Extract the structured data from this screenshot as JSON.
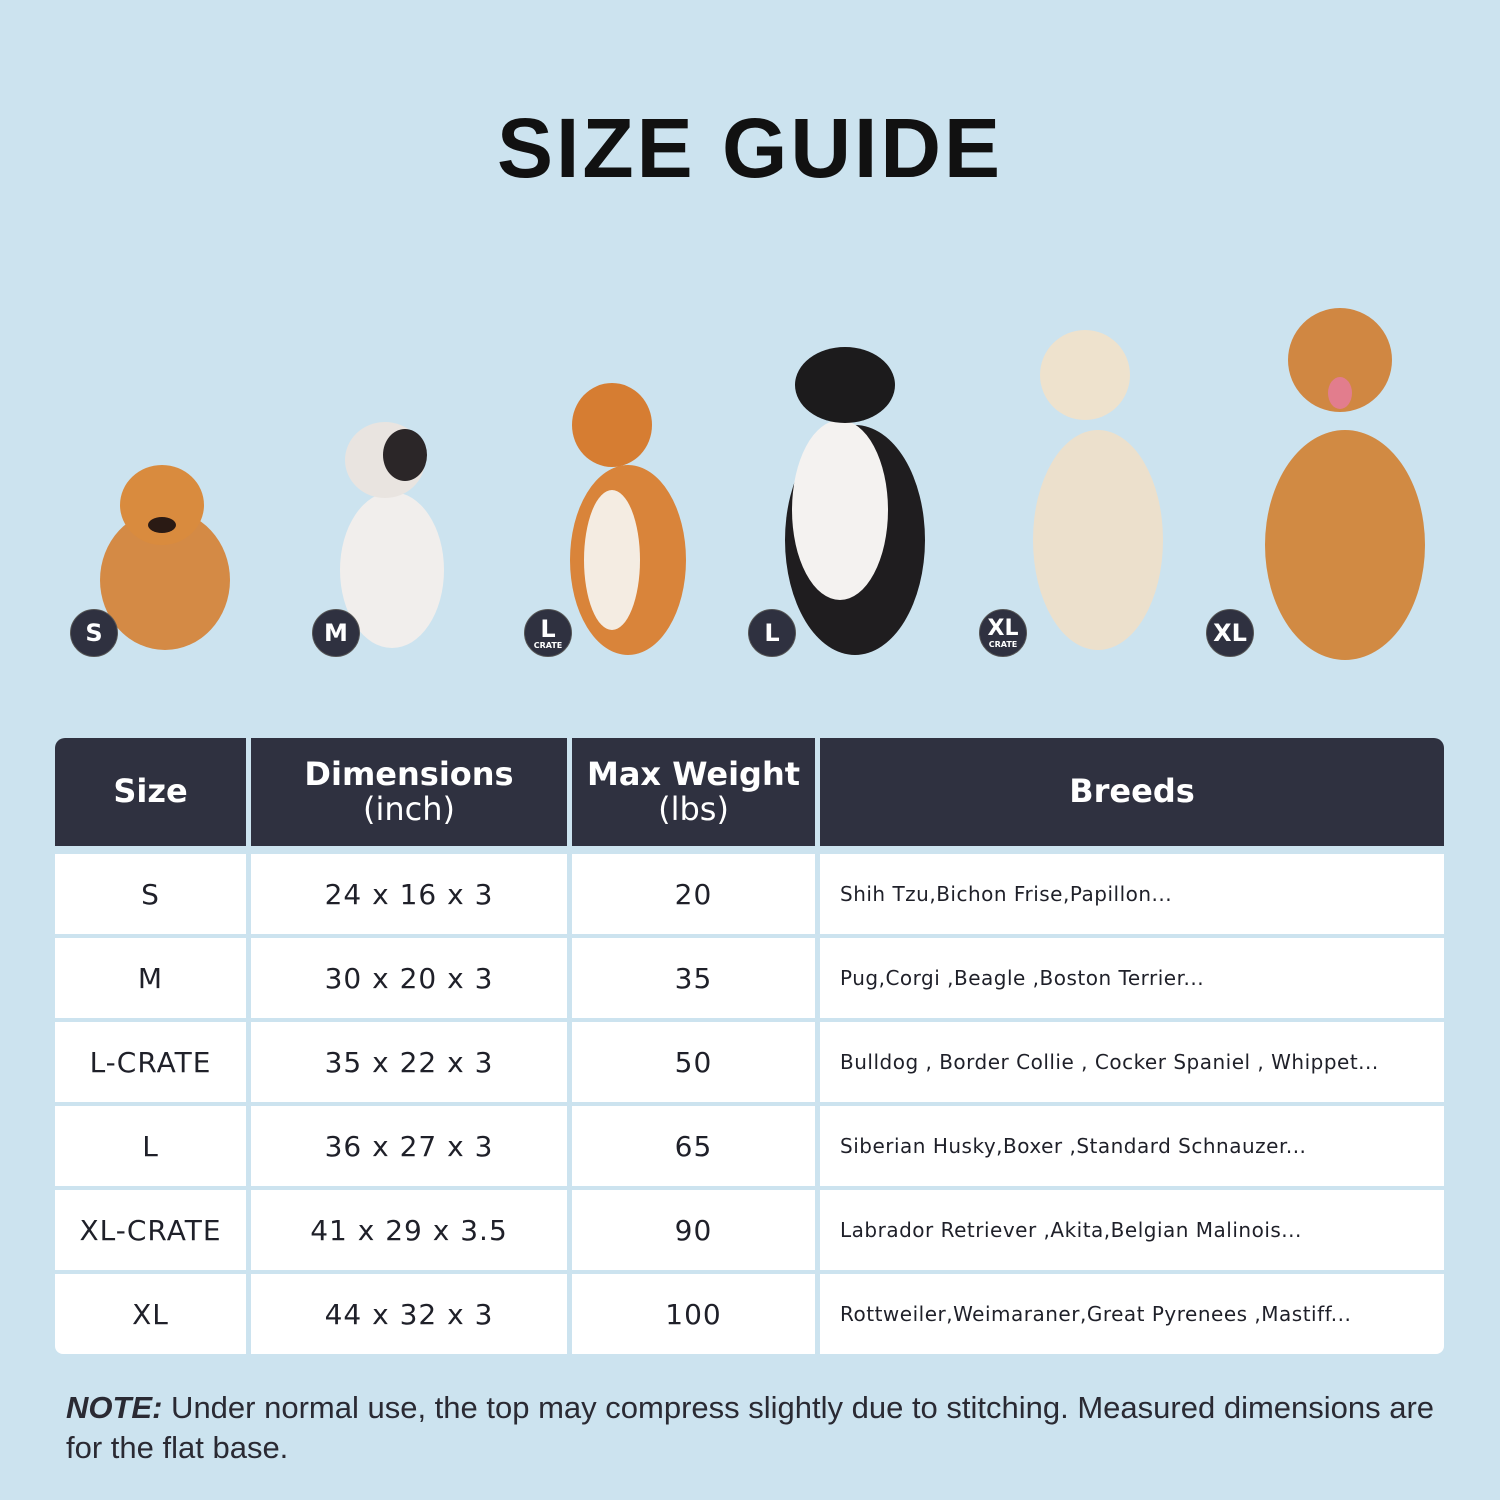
{
  "title": "SIZE GUIDE",
  "colors": {
    "background": "#cce3ef",
    "header": "#2f3140",
    "badge": "#2f3140"
  },
  "badges": [
    {
      "label": "S",
      "sub": ""
    },
    {
      "label": "M",
      "sub": ""
    },
    {
      "label": "L",
      "sub": "CRATE"
    },
    {
      "label": "L",
      "sub": ""
    },
    {
      "label": "XL",
      "sub": "CRATE"
    },
    {
      "label": "XL",
      "sub": ""
    }
  ],
  "table": {
    "headers": [
      {
        "line1": "Size",
        "line2": ""
      },
      {
        "line1": "Dimensions",
        "line2": "(inch)"
      },
      {
        "line1": "Max Weight",
        "line2": "(lbs)"
      },
      {
        "line1": "Breeds",
        "line2": ""
      }
    ],
    "rows": [
      {
        "size": "S",
        "dimensions": "24 x 16 x 3",
        "max_weight": "20",
        "breeds": "Shih Tzu,Bichon Frise,Papillon..."
      },
      {
        "size": "M",
        "dimensions": "30 x 20 x 3",
        "max_weight": "35",
        "breeds": "Pug,Corgi ,Beagle ,Boston Terrier..."
      },
      {
        "size": "L-CRATE",
        "dimensions": "35 x 22 x 3",
        "max_weight": "50",
        "breeds": "Bulldog , Border Collie , Cocker Spaniel , Whippet..."
      },
      {
        "size": "L",
        "dimensions": "36 x 27 x 3",
        "max_weight": "65",
        "breeds": "Siberian Husky,Boxer ,Standard Schnauzer..."
      },
      {
        "size": "XL-CRATE",
        "dimensions": "41 x 29 x 3.5",
        "max_weight": "90",
        "breeds": "Labrador Retriever ,Akita,Belgian Malinois..."
      },
      {
        "size": "XL",
        "dimensions": "44 x 32 x 3",
        "max_weight": "100",
        "breeds": "Rottweiler,Weimaraner,Great Pyrenees ,Mastiff..."
      }
    ]
  },
  "note": {
    "label": "NOTE:",
    "text": " Under normal use, the top may compress slightly due to stitching. Measured dimensions are for the flat base."
  }
}
